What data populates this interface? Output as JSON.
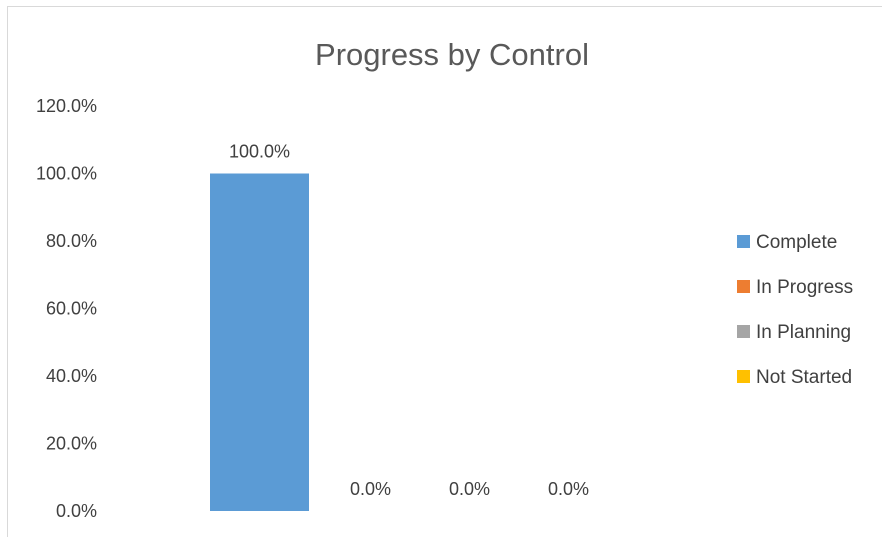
{
  "chart_data": {
    "type": "bar",
    "title": "Progress by Control",
    "xlabel": "",
    "ylabel": "",
    "ylim": [
      0,
      120
    ],
    "y_ticks": [
      "0.0%",
      "20.0%",
      "40.0%",
      "60.0%",
      "80.0%",
      "100.0%",
      "120.0%"
    ],
    "y_tick_values": [
      0,
      20,
      40,
      60,
      80,
      100,
      120
    ],
    "grid": false,
    "legend_position": "right",
    "series": [
      {
        "name": "Complete",
        "value": 100.0,
        "label": "100.0%",
        "color": "#5B9BD5"
      },
      {
        "name": "In Progress",
        "value": 0.0,
        "label": "0.0%",
        "color": "#ED7D31"
      },
      {
        "name": "In Planning",
        "value": 0.0,
        "label": "0.0%",
        "color": "#A5A5A5"
      },
      {
        "name": "Not Started",
        "value": 0.0,
        "label": "0.0%",
        "color": "#FFC000"
      }
    ]
  }
}
